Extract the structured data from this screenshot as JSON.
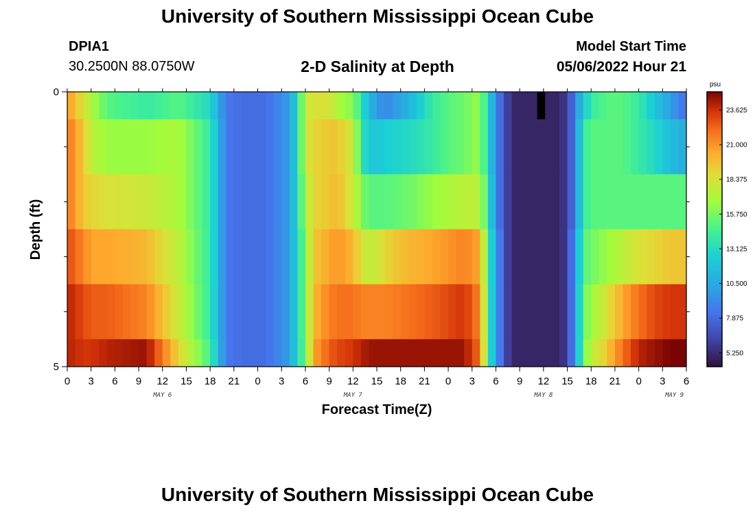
{
  "page": {
    "title_top": "University of Southern Mississippi Ocean Cube",
    "title_bottom": "University of Southern Mississippi Ocean Cube",
    "station_id": "DPIA1",
    "station_coords": "30.2500N  88.0750W",
    "plot_title": "2-D Salinity at Depth",
    "start_label": "Model Start Time",
    "start_value": "05/06/2022 Hour 21"
  },
  "chart_data": {
    "type": "heatmap",
    "title": "2-D Salinity at Depth",
    "xlabel": "Forecast Time(Z)",
    "ylabel": "Depth (ft)",
    "colorbar_label": "psu",
    "x_range_hours": [
      0,
      78
    ],
    "x_tick_labels": [
      "0",
      "3",
      "6",
      "9",
      "12",
      "15",
      "18",
      "21",
      "0",
      "3",
      "6",
      "9",
      "12",
      "15",
      "18",
      "21",
      "0",
      "3",
      "6",
      "9",
      "12",
      "15",
      "18",
      "21",
      "0",
      "3",
      "6"
    ],
    "date_labels": [
      {
        "label": "MAY 6",
        "hour": 12
      },
      {
        "label": "MAY 7",
        "hour": 36
      },
      {
        "label": "MAY 8",
        "hour": 60
      },
      {
        "label": "MAY 9",
        "hour": 76.5
      }
    ],
    "y_range": [
      0,
      5
    ],
    "y_tick_labels": [
      "0",
      "5"
    ],
    "y_minor_ticks": [
      1,
      2,
      3,
      4
    ],
    "colorbar_ticks": [
      "23.625",
      "21.000",
      "18.375",
      "15.750",
      "13.125",
      "10.500",
      "7.875",
      "5.250"
    ],
    "color_range": [
      4.2,
      25.0
    ],
    "depth_layers": [
      0.5,
      1.5,
      2.5,
      3.5,
      4.5
    ],
    "keyframe_hours": [
      0,
      2,
      3,
      5,
      10,
      14,
      18,
      20,
      22,
      25,
      28,
      29,
      30,
      31,
      33,
      34,
      36,
      37,
      38,
      39,
      40,
      43,
      46,
      48,
      50,
      52,
      53,
      54,
      55,
      56,
      58,
      60,
      62,
      63,
      64,
      65,
      66,
      68,
      70,
      72,
      74,
      76,
      78
    ],
    "salinity_psu": [
      [
        21,
        18.5,
        17,
        15,
        14,
        15,
        13,
        8.5,
        8,
        8,
        10,
        13,
        18,
        18.5,
        18.5,
        17,
        16,
        14,
        11,
        10,
        9,
        11,
        14,
        15,
        15.5,
        16.5,
        13,
        9,
        7,
        5,
        5,
        5,
        5,
        6,
        9,
        12,
        14,
        15,
        15,
        14,
        12,
        10,
        8
      ],
      [
        22,
        19.5,
        17.5,
        16.5,
        16.5,
        17,
        14,
        8.5,
        8,
        8,
        10,
        13,
        18,
        19,
        19.5,
        19.5,
        18,
        14,
        12,
        12,
        12.5,
        13,
        14,
        15,
        15.5,
        16.5,
        13,
        9,
        7,
        5,
        5,
        5,
        5,
        6,
        9,
        14,
        15,
        15,
        15,
        14,
        13,
        11.5,
        10.5
      ],
      [
        22,
        19.5,
        19,
        18.5,
        18,
        17,
        14,
        8.5,
        8,
        8,
        10,
        13,
        17,
        19,
        19.5,
        20,
        18,
        16,
        15,
        15,
        15,
        15.5,
        16.5,
        17,
        17.5,
        17.5,
        14,
        9,
        7,
        5,
        5,
        5,
        5,
        6,
        9,
        14,
        15,
        15,
        15,
        15,
        15,
        15,
        15
      ],
      [
        23,
        21.5,
        20.5,
        20.5,
        20,
        17.5,
        14,
        8.5,
        8,
        8,
        10,
        13,
        16,
        19.5,
        20.5,
        21,
        20,
        18.5,
        17.5,
        18,
        19,
        20,
        20.5,
        21,
        21.5,
        20.5,
        15,
        10,
        7,
        5,
        5,
        5,
        5,
        6,
        10,
        15,
        15.5,
        16.5,
        17.5,
        18.5,
        19,
        19.5,
        19.5
      ],
      [
        24,
        23,
        22.5,
        22.5,
        21.5,
        18,
        14,
        8.5,
        8,
        8,
        10,
        13,
        16,
        20,
        21.5,
        22,
        22,
        21.5,
        21.5,
        21.5,
        21.5,
        22,
        22.5,
        23,
        23.5,
        21.5,
        15,
        10,
        7,
        5,
        5,
        5,
        5,
        6,
        10,
        15.5,
        16.5,
        18.5,
        20.5,
        22,
        23,
        23.5,
        23.5
      ],
      [
        24,
        23.5,
        23.5,
        24,
        24.5,
        19,
        14.5,
        8.5,
        8,
        8,
        10,
        13,
        15.5,
        20.5,
        22.5,
        23,
        23.5,
        24,
        24.5,
        24.5,
        24.5,
        24.5,
        24.5,
        24.5,
        24.5,
        22,
        15,
        10,
        7,
        5,
        5,
        5,
        5,
        6,
        10,
        15.5,
        17.5,
        19.5,
        22,
        24,
        24.5,
        25,
        25
      ]
    ],
    "missing_cell": {
      "hour_start": 59.2,
      "hour_end": 60.2,
      "depth_start": 0,
      "depth_end": 0.5
    }
  }
}
